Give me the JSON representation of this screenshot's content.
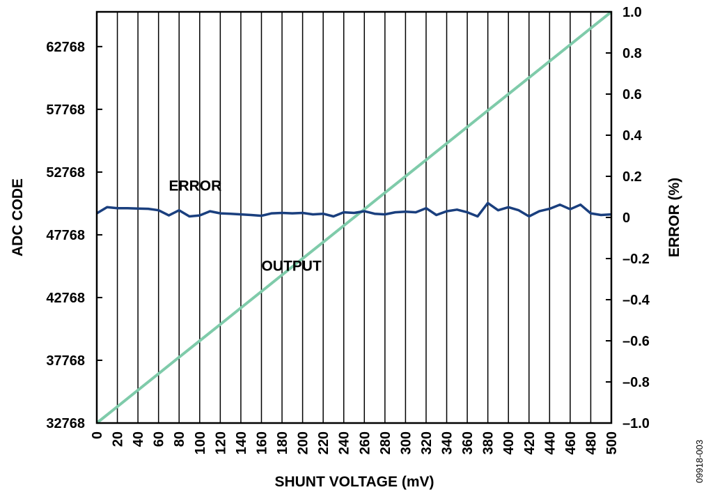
{
  "chart_data": {
    "type": "line",
    "xlabel": "SHUNT VOLTAGE (mV)",
    "ylabel_left": "ADC CODE",
    "ylabel_right": "ERROR (%)",
    "xlim": [
      0,
      500
    ],
    "ylim_left": [
      32768,
      65536
    ],
    "ylim_right": [
      -1.0,
      1.0
    ],
    "x_ticks": [
      0,
      20,
      40,
      60,
      80,
      100,
      120,
      140,
      160,
      180,
      200,
      220,
      240,
      260,
      280,
      300,
      320,
      340,
      360,
      380,
      400,
      420,
      440,
      460,
      480,
      500
    ],
    "y_left_ticks": [
      32768,
      37768,
      42768,
      47768,
      52768,
      57768,
      62768
    ],
    "y_right_ticks": [
      -1.0,
      -0.8,
      -0.6,
      -0.4,
      -0.2,
      0,
      0.2,
      0.4,
      0.6,
      0.8,
      1.0
    ],
    "y_right_tick_labels": [
      "–1.0",
      "–0.8",
      "–0.6",
      "–0.4",
      "–0.2",
      "0",
      "0.2",
      "0.4",
      "0.6",
      "0.8",
      "1.0"
    ],
    "grid": true,
    "series": [
      {
        "name": "OUTPUT",
        "axis": "left",
        "color": "#7fcbaa",
        "x": [
          0,
          20,
          40,
          60,
          80,
          100,
          120,
          140,
          160,
          180,
          200,
          220,
          240,
          260,
          280,
          300,
          320,
          340,
          360,
          380,
          400,
          420,
          440,
          460,
          480,
          500
        ],
        "y": [
          32768,
          34079,
          35390,
          36700,
          38011,
          39322,
          40632,
          41943,
          43254,
          44565,
          45875,
          47186,
          48497,
          49807,
          51118,
          52429,
          53739,
          55050,
          56361,
          57672,
          58982,
          60293,
          61604,
          62914,
          64225,
          65536
        ]
      },
      {
        "name": "ERROR",
        "axis": "right",
        "color": "#1a3f7e",
        "x": [
          0,
          10,
          20,
          30,
          40,
          50,
          60,
          70,
          80,
          90,
          100,
          110,
          120,
          130,
          140,
          150,
          160,
          170,
          180,
          190,
          200,
          210,
          220,
          230,
          240,
          250,
          260,
          270,
          280,
          290,
          300,
          310,
          320,
          330,
          340,
          350,
          360,
          370,
          380,
          390,
          400,
          410,
          420,
          430,
          440,
          450,
          460,
          470,
          480,
          490,
          500
        ],
        "y": [
          0.02,
          0.05,
          0.045,
          0.045,
          0.043,
          0.042,
          0.035,
          0.01,
          0.035,
          0.005,
          0.01,
          0.03,
          0.02,
          0.018,
          0.015,
          0.012,
          0.008,
          0.02,
          0.022,
          0.02,
          0.022,
          0.015,
          0.018,
          0.005,
          0.025,
          0.022,
          0.03,
          0.018,
          0.015,
          0.025,
          0.028,
          0.025,
          0.045,
          0.012,
          0.03,
          0.038,
          0.025,
          0.005,
          0.07,
          0.035,
          0.05,
          0.035,
          0.005,
          0.03,
          0.042,
          0.062,
          0.04,
          0.062,
          0.02,
          0.012,
          0.015
        ]
      }
    ],
    "annotations": [
      {
        "text": "ERROR",
        "x": 70,
        "y_right": 0.13
      },
      {
        "text": "OUTPUT",
        "x": 160,
        "y_right": -0.26
      }
    ],
    "figure_id": "09918-003"
  }
}
